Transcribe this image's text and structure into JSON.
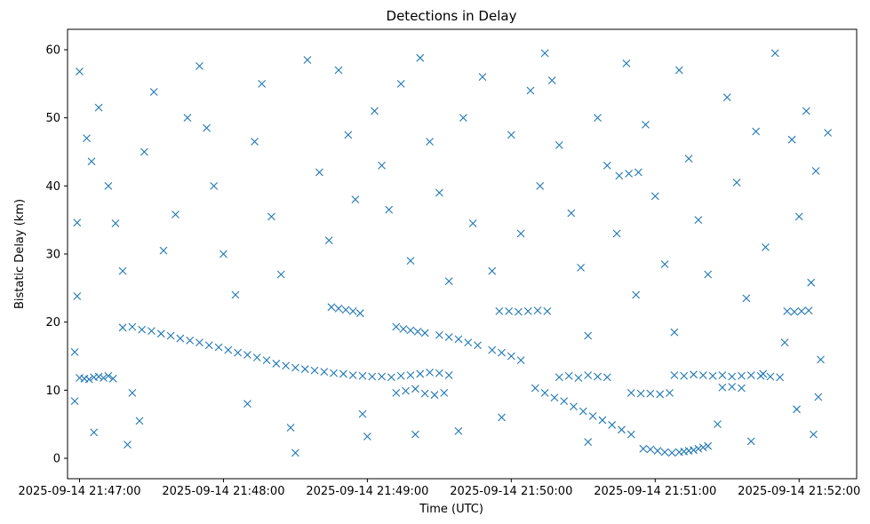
{
  "chart_data": {
    "type": "scatter",
    "title": "Detections in Delay",
    "xlabel": "Time (UTC)",
    "ylabel": "Bistatic Delay (km)",
    "x_ticks": [
      "2025-09-14 21:47:00",
      "2025-09-14 21:48:00",
      "2025-09-14 21:49:00",
      "2025-09-14 21:50:00",
      "2025-09-14 21:51:00",
      "2025-09-14 21:52:00"
    ],
    "y_ticks": [
      "0",
      "10",
      "20",
      "30",
      "40",
      "50",
      "60"
    ],
    "xlim": [
      "2025-09-14 21:46:55",
      "2025-09-14 21:52:24"
    ],
    "ylim": [
      -3,
      63
    ],
    "grid": false,
    "marker": "x",
    "color": "#1f77b4",
    "series": [
      {
        "points": [
          [
            "2025-09-14 21:47:00",
            11.8
          ],
          [
            "2025-09-14 21:47:02",
            11.7
          ],
          [
            "2025-09-14 21:47:04",
            11.6
          ],
          [
            "2025-09-14 21:47:06",
            11.9
          ],
          [
            "2025-09-14 21:47:08",
            12.0
          ],
          [
            "2025-09-14 21:47:10",
            11.8
          ],
          [
            "2025-09-14 21:47:12",
            12.1
          ],
          [
            "2025-09-14 21:47:14",
            11.7
          ],
          [
            "2025-09-14 21:47:18",
            19.2
          ],
          [
            "2025-09-14 21:47:22",
            19.3
          ],
          [
            "2025-09-14 21:47:26",
            18.9
          ],
          [
            "2025-09-14 21:47:30",
            18.7
          ],
          [
            "2025-09-14 21:47:34",
            18.3
          ],
          [
            "2025-09-14 21:47:38",
            18.0
          ],
          [
            "2025-09-14 21:47:42",
            17.6
          ],
          [
            "2025-09-14 21:47:46",
            17.3
          ],
          [
            "2025-09-14 21:47:50",
            17.0
          ],
          [
            "2025-09-14 21:47:54",
            16.6
          ],
          [
            "2025-09-14 21:47:58",
            16.3
          ],
          [
            "2025-09-14 21:48:02",
            15.9
          ],
          [
            "2025-09-14 21:48:06",
            15.5
          ],
          [
            "2025-09-14 21:48:10",
            15.2
          ],
          [
            "2025-09-14 21:48:14",
            14.8
          ],
          [
            "2025-09-14 21:48:18",
            14.4
          ],
          [
            "2025-09-14 21:48:22",
            13.9
          ],
          [
            "2025-09-14 21:48:26",
            13.6
          ],
          [
            "2025-09-14 21:48:30",
            13.3
          ],
          [
            "2025-09-14 21:48:34",
            13.1
          ],
          [
            "2025-09-14 21:48:38",
            12.9
          ],
          [
            "2025-09-14 21:48:42",
            12.7
          ],
          [
            "2025-09-14 21:48:46",
            12.5
          ],
          [
            "2025-09-14 21:48:50",
            12.4
          ],
          [
            "2025-09-14 21:48:54",
            12.2
          ],
          [
            "2025-09-14 21:48:58",
            12.1
          ],
          [
            "2025-09-14 21:49:02",
            12.0
          ],
          [
            "2025-09-14 21:49:06",
            12.0
          ],
          [
            "2025-09-14 21:49:10",
            11.9
          ],
          [
            "2025-09-14 21:49:14",
            12.1
          ],
          [
            "2025-09-14 21:49:18",
            12.2
          ],
          [
            "2025-09-14 21:49:22",
            12.4
          ],
          [
            "2025-09-14 21:49:26",
            12.6
          ],
          [
            "2025-09-14 21:49:30",
            12.5
          ],
          [
            "2025-09-14 21:49:34",
            12.2
          ],
          [
            "2025-09-14 21:48:45",
            22.2
          ],
          [
            "2025-09-14 21:48:48",
            22.0
          ],
          [
            "2025-09-14 21:48:51",
            21.8
          ],
          [
            "2025-09-14 21:48:54",
            21.6
          ],
          [
            "2025-09-14 21:48:57",
            21.3
          ],
          [
            "2025-09-14 21:49:12",
            19.3
          ],
          [
            "2025-09-14 21:49:15",
            19.0
          ],
          [
            "2025-09-14 21:49:18",
            18.8
          ],
          [
            "2025-09-14 21:49:21",
            18.6
          ],
          [
            "2025-09-14 21:49:24",
            18.4
          ],
          [
            "2025-09-14 21:49:30",
            18.1
          ],
          [
            "2025-09-14 21:49:34",
            17.8
          ],
          [
            "2025-09-14 21:49:38",
            17.5
          ],
          [
            "2025-09-14 21:49:42",
            17.0
          ],
          [
            "2025-09-14 21:49:46",
            16.6
          ],
          [
            "2025-09-14 21:49:52",
            15.9
          ],
          [
            "2025-09-14 21:49:56",
            15.5
          ],
          [
            "2025-09-14 21:50:00",
            15.0
          ],
          [
            "2025-09-14 21:50:04",
            14.4
          ],
          [
            "2025-09-14 21:49:12",
            9.6
          ],
          [
            "2025-09-14 21:49:16",
            9.9
          ],
          [
            "2025-09-14 21:49:20",
            10.2
          ],
          [
            "2025-09-14 21:49:24",
            9.5
          ],
          [
            "2025-09-14 21:49:28",
            9.3
          ],
          [
            "2025-09-14 21:49:32",
            9.6
          ],
          [
            "2025-09-14 21:49:55",
            21.6
          ],
          [
            "2025-09-14 21:49:59",
            21.6
          ],
          [
            "2025-09-14 21:50:03",
            21.5
          ],
          [
            "2025-09-14 21:50:07",
            21.6
          ],
          [
            "2025-09-14 21:50:11",
            21.7
          ],
          [
            "2025-09-14 21:50:15",
            21.6
          ],
          [
            "2025-09-14 21:50:10",
            10.3
          ],
          [
            "2025-09-14 21:50:14",
            9.6
          ],
          [
            "2025-09-14 21:50:18",
            8.9
          ],
          [
            "2025-09-14 21:50:22",
            8.4
          ],
          [
            "2025-09-14 21:50:26",
            7.6
          ],
          [
            "2025-09-14 21:50:30",
            6.9
          ],
          [
            "2025-09-14 21:50:34",
            6.2
          ],
          [
            "2025-09-14 21:50:38",
            5.6
          ],
          [
            "2025-09-14 21:50:42",
            4.9
          ],
          [
            "2025-09-14 21:50:46",
            4.2
          ],
          [
            "2025-09-14 21:50:50",
            3.5
          ],
          [
            "2025-09-14 21:50:20",
            11.9
          ],
          [
            "2025-09-14 21:50:24",
            12.1
          ],
          [
            "2025-09-14 21:50:28",
            11.8
          ],
          [
            "2025-09-14 21:50:32",
            12.2
          ],
          [
            "2025-09-14 21:50:36",
            12.0
          ],
          [
            "2025-09-14 21:50:40",
            11.9
          ],
          [
            "2025-09-14 21:50:50",
            9.6
          ],
          [
            "2025-09-14 21:50:54",
            9.5
          ],
          [
            "2025-09-14 21:50:58",
            9.5
          ],
          [
            "2025-09-14 21:51:02",
            9.4
          ],
          [
            "2025-09-14 21:51:06",
            9.6
          ],
          [
            "2025-09-14 21:50:45",
            41.5
          ],
          [
            "2025-09-14 21:50:49",
            41.8
          ],
          [
            "2025-09-14 21:50:53",
            42.0
          ],
          [
            "2025-09-14 21:50:55",
            1.4
          ],
          [
            "2025-09-14 21:50:58",
            1.3
          ],
          [
            "2025-09-14 21:51:01",
            1.1
          ],
          [
            "2025-09-14 21:51:04",
            0.9
          ],
          [
            "2025-09-14 21:51:07",
            0.8
          ],
          [
            "2025-09-14 21:51:10",
            0.9
          ],
          [
            "2025-09-14 21:51:12",
            1.0
          ],
          [
            "2025-09-14 21:51:14",
            1.1
          ],
          [
            "2025-09-14 21:51:16",
            1.2
          ],
          [
            "2025-09-14 21:51:18",
            1.4
          ],
          [
            "2025-09-14 21:51:20",
            1.6
          ],
          [
            "2025-09-14 21:51:22",
            1.8
          ],
          [
            "2025-09-14 21:51:08",
            12.2
          ],
          [
            "2025-09-14 21:51:12",
            12.1
          ],
          [
            "2025-09-14 21:51:16",
            12.3
          ],
          [
            "2025-09-14 21:51:20",
            12.2
          ],
          [
            "2025-09-14 21:51:24",
            12.1
          ],
          [
            "2025-09-14 21:51:28",
            12.2
          ],
          [
            "2025-09-14 21:51:32",
            12.0
          ],
          [
            "2025-09-14 21:51:36",
            12.1
          ],
          [
            "2025-09-14 21:51:40",
            12.2
          ],
          [
            "2025-09-14 21:51:44",
            12.1
          ],
          [
            "2025-09-14 21:51:48",
            12.0
          ],
          [
            "2025-09-14 21:51:52",
            11.9
          ],
          [
            "2025-09-14 21:51:28",
            10.4
          ],
          [
            "2025-09-14 21:51:32",
            10.5
          ],
          [
            "2025-09-14 21:51:36",
            10.3
          ],
          [
            "2025-09-14 21:51:55",
            21.6
          ],
          [
            "2025-09-14 21:51:58",
            21.5
          ],
          [
            "2025-09-14 21:52:01",
            21.6
          ],
          [
            "2025-09-14 21:52:04",
            21.7
          ],
          [
            "2025-09-14 21:47:00",
            56.8
          ],
          [
            "2025-09-14 21:47:03",
            47.0
          ],
          [
            "2025-09-14 21:47:08",
            51.5
          ],
          [
            "2025-09-14 21:47:12",
            40.0
          ],
          [
            "2025-09-14 21:47:15",
            34.5
          ],
          [
            "2025-09-14 21:47:18",
            27.5
          ],
          [
            "2025-09-14 21:47:05",
            43.6
          ],
          [
            "2025-09-14 21:46:59",
            34.6
          ],
          [
            "2025-09-14 21:46:59",
            23.8
          ],
          [
            "2025-09-14 21:46:58",
            15.6
          ],
          [
            "2025-09-14 21:46:58",
            8.4
          ],
          [
            "2025-09-14 21:47:06",
            3.8
          ],
          [
            "2025-09-14 21:47:20",
            2.0
          ],
          [
            "2025-09-14 21:47:25",
            5.5
          ],
          [
            "2025-09-14 21:47:22",
            9.6
          ],
          [
            "2025-09-14 21:47:27",
            45.0
          ],
          [
            "2025-09-14 21:47:31",
            53.8
          ],
          [
            "2025-09-14 21:47:35",
            30.5
          ],
          [
            "2025-09-14 21:47:40",
            35.8
          ],
          [
            "2025-09-14 21:47:45",
            50.0
          ],
          [
            "2025-09-14 21:47:50",
            57.6
          ],
          [
            "2025-09-14 21:47:53",
            48.5
          ],
          [
            "2025-09-14 21:47:56",
            40.0
          ],
          [
            "2025-09-14 21:48:00",
            30.0
          ],
          [
            "2025-09-14 21:48:05",
            24.0
          ],
          [
            "2025-09-14 21:48:10",
            8.0
          ],
          [
            "2025-09-14 21:48:13",
            46.5
          ],
          [
            "2025-09-14 21:48:16",
            55.0
          ],
          [
            "2025-09-14 21:48:20",
            35.5
          ],
          [
            "2025-09-14 21:48:24",
            27.0
          ],
          [
            "2025-09-14 21:48:28",
            4.5
          ],
          [
            "2025-09-14 21:48:30",
            0.8
          ],
          [
            "2025-09-14 21:48:35",
            58.5
          ],
          [
            "2025-09-14 21:48:40",
            42.0
          ],
          [
            "2025-09-14 21:48:44",
            32.0
          ],
          [
            "2025-09-14 21:48:48",
            57.0
          ],
          [
            "2025-09-14 21:48:52",
            47.5
          ],
          [
            "2025-09-14 21:48:55",
            38.0
          ],
          [
            "2025-09-14 21:48:58",
            6.5
          ],
          [
            "2025-09-14 21:49:00",
            3.2
          ],
          [
            "2025-09-14 21:49:03",
            51.0
          ],
          [
            "2025-09-14 21:49:06",
            43.0
          ],
          [
            "2025-09-14 21:49:09",
            36.5
          ],
          [
            "2025-09-14 21:49:14",
            55.0
          ],
          [
            "2025-09-14 21:49:18",
            29.0
          ],
          [
            "2025-09-14 21:49:20",
            3.5
          ],
          [
            "2025-09-14 21:49:22",
            58.8
          ],
          [
            "2025-09-14 21:49:26",
            46.5
          ],
          [
            "2025-09-14 21:49:30",
            39.0
          ],
          [
            "2025-09-14 21:49:34",
            26.0
          ],
          [
            "2025-09-14 21:49:38",
            4.0
          ],
          [
            "2025-09-14 21:49:40",
            50.0
          ],
          [
            "2025-09-14 21:49:44",
            34.5
          ],
          [
            "2025-09-14 21:49:48",
            56.0
          ],
          [
            "2025-09-14 21:49:52",
            27.5
          ],
          [
            "2025-09-14 21:49:56",
            6.0
          ],
          [
            "2025-09-14 21:50:00",
            47.5
          ],
          [
            "2025-09-14 21:50:04",
            33.0
          ],
          [
            "2025-09-14 21:50:08",
            54.0
          ],
          [
            "2025-09-14 21:50:12",
            40.0
          ],
          [
            "2025-09-14 21:50:14",
            59.5
          ],
          [
            "2025-09-14 21:50:17",
            55.5
          ],
          [
            "2025-09-14 21:50:20",
            46.0
          ],
          [
            "2025-09-14 21:50:25",
            36.0
          ],
          [
            "2025-09-14 21:50:29",
            28.0
          ],
          [
            "2025-09-14 21:50:32",
            18.0
          ],
          [
            "2025-09-14 21:50:36",
            50.0
          ],
          [
            "2025-09-14 21:50:40",
            43.0
          ],
          [
            "2025-09-14 21:50:44",
            33.0
          ],
          [
            "2025-09-14 21:50:48",
            58.0
          ],
          [
            "2025-09-14 21:50:52",
            24.0
          ],
          [
            "2025-09-14 21:50:56",
            49.0
          ],
          [
            "2025-09-14 21:51:00",
            38.5
          ],
          [
            "2025-09-14 21:51:04",
            28.5
          ],
          [
            "2025-09-14 21:51:08",
            18.5
          ],
          [
            "2025-09-14 21:51:10",
            57.0
          ],
          [
            "2025-09-14 21:51:14",
            44.0
          ],
          [
            "2025-09-14 21:51:18",
            35.0
          ],
          [
            "2025-09-14 21:51:22",
            27.0
          ],
          [
            "2025-09-14 21:51:26",
            5.0
          ],
          [
            "2025-09-14 21:51:30",
            53.0
          ],
          [
            "2025-09-14 21:51:34",
            40.5
          ],
          [
            "2025-09-14 21:51:38",
            23.5
          ],
          [
            "2025-09-14 21:51:42",
            48.0
          ],
          [
            "2025-09-14 21:51:46",
            31.0
          ],
          [
            "2025-09-14 21:51:50",
            59.5
          ],
          [
            "2025-09-14 21:51:54",
            17.0
          ],
          [
            "2025-09-14 21:51:57",
            46.8
          ],
          [
            "2025-09-14 21:52:00",
            35.5
          ],
          [
            "2025-09-14 21:52:03",
            51.0
          ],
          [
            "2025-09-14 21:52:05",
            25.8
          ],
          [
            "2025-09-14 21:52:07",
            42.2
          ],
          [
            "2025-09-14 21:52:09",
            14.5
          ],
          [
            "2025-09-14 21:52:12",
            47.8
          ],
          [
            "2025-09-14 21:52:08",
            9.0
          ],
          [
            "2025-09-14 21:52:06",
            3.5
          ],
          [
            "2025-09-14 21:51:59",
            7.2
          ],
          [
            "2025-09-14 21:51:45",
            12.4
          ],
          [
            "2025-09-14 21:51:40",
            2.5
          ],
          [
            "2025-09-14 21:50:32",
            2.4
          ]
        ]
      }
    ]
  }
}
